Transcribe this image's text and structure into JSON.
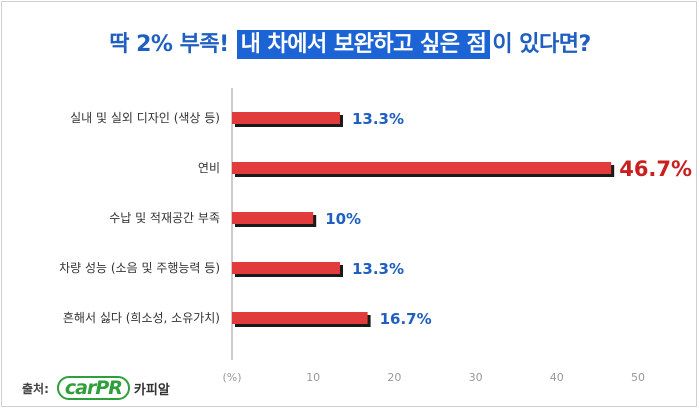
{
  "title": {
    "prefix": "딱 2% 부족!",
    "highlight": "내 차에서 보완하고 싶은 점",
    "suffix": "이 있다면?"
  },
  "source": {
    "label": "출처:",
    "logo_text": "carPR",
    "logo_kr": "카피알"
  },
  "colors": {
    "bar": "#e23b3b",
    "label_blue": "#1f5fbf",
    "label_highlight": "#c8201f"
  },
  "chart_data": {
    "type": "bar",
    "orientation": "horizontal",
    "categories": [
      "실내 및 실외 디자인 (색상 등)",
      "연비",
      "수납 및 적재공간 부족",
      "차량 성능 (소음 및 주행능력 등)",
      "흔해서 싫다 (희소성, 소유가치)"
    ],
    "values": [
      13.3,
      46.7,
      10,
      13.3,
      16.7
    ],
    "value_labels": [
      "13.3%",
      "46.7%",
      "10%",
      "13.3%",
      "16.7%"
    ],
    "highlight_index": 1,
    "x_unit_label": "(%)",
    "xlim": [
      0,
      50
    ],
    "xticks": [
      10,
      20,
      30,
      40,
      50
    ],
    "grid": false,
    "legend": "none"
  }
}
